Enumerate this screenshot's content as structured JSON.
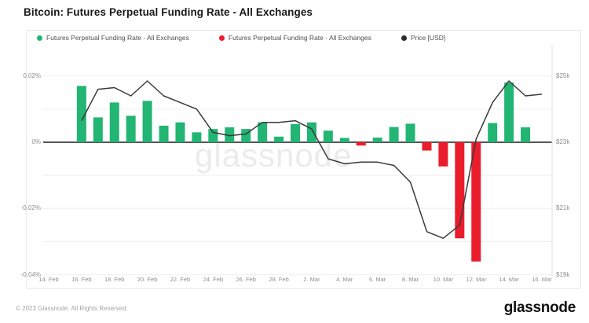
{
  "page": {
    "title": "Bitcoin: Futures Perpetual Funding Rate - All Exchanges",
    "watermark": "glassnode",
    "footer": {
      "copyright": "© 2023 Glassnode. All Rights Reserved.",
      "brand": "glassnode"
    }
  },
  "colors": {
    "positive_bar": "#22b573",
    "negative_bar": "#ea1d2c",
    "price_line": "#3a3a3a",
    "zero_line": "#575757",
    "grid": "#efefef",
    "plot_border": "#e2e2e2"
  },
  "legend": [
    {
      "label": "Futures Perpetual Funding Rate - All Exchanges",
      "color": "#22b573"
    },
    {
      "label": "Futures Perpetual Funding Rate - All Exchanges",
      "color": "#ea1d2c"
    },
    {
      "label": "Price [USD]",
      "color": "#2b2b2b"
    }
  ],
  "chart_data": {
    "type": "combo-bar-line",
    "title": "Bitcoin: Futures Perpetual Funding Rate - All Exchanges",
    "categories": [
      "14. Feb",
      "15. Feb",
      "16. Feb",
      "17. Feb",
      "18. Feb",
      "19. Feb",
      "20. Feb",
      "21. Feb",
      "22. Feb",
      "23. Feb",
      "24. Feb",
      "25. Feb",
      "26. Feb",
      "27. Feb",
      "28. Feb",
      "1. Mar",
      "2. Mar",
      "3. Mar",
      "4. Mar",
      "5. Mar",
      "6. Mar",
      "7. Mar",
      "8. Mar",
      "9. Mar",
      "10. Mar",
      "11. Mar",
      "12. Mar",
      "13. Mar",
      "14. Mar",
      "15. Mar",
      "16. Mar"
    ],
    "xtick_every": 2,
    "series": [
      {
        "name": "Futures Perpetual Funding Rate - All Exchanges",
        "type": "bar",
        "unit": "%",
        "axis": "left",
        "values": [
          null,
          null,
          0.017,
          0.0075,
          0.012,
          0.008,
          0.0125,
          0.005,
          0.006,
          0.003,
          0.004,
          0.0045,
          0.004,
          0.006,
          0.0017,
          0.0055,
          0.006,
          0.0035,
          0.0013,
          -0.001,
          0.0014,
          0.0046,
          0.0056,
          -0.0025,
          -0.0073,
          -0.029,
          -0.036,
          0.0058,
          0.018,
          0.0045,
          null
        ]
      },
      {
        "name": "Price [USD]",
        "type": "line",
        "unit": "USD (thousands)",
        "axis": "right",
        "values": [
          null,
          null,
          23.65,
          24.6,
          24.65,
          24.4,
          24.85,
          24.4,
          24.2,
          24.0,
          23.3,
          23.2,
          23.25,
          23.6,
          23.6,
          23.65,
          23.4,
          22.5,
          22.35,
          22.4,
          22.4,
          22.3,
          21.8,
          20.3,
          20.1,
          20.5,
          23.1,
          24.2,
          24.85,
          24.4,
          24.45
        ]
      }
    ],
    "left_axis": {
      "ticks": [
        {
          "label": "0.02%",
          "value": 0.02
        },
        {
          "label": "0%",
          "value": 0
        },
        {
          "label": "-0.02%",
          "value": -0.02
        },
        {
          "label": "-0.04%",
          "value": -0.04
        }
      ],
      "gridline_values": [
        0.02,
        0.01,
        0,
        -0.01,
        -0.02,
        -0.03,
        -0.04
      ],
      "ylim": [
        -0.045,
        0.025
      ]
    },
    "right_axis": {
      "ticks": [
        {
          "label": "$25k",
          "value": 25
        },
        {
          "label": "$23k",
          "value": 23
        },
        {
          "label": "$21k",
          "value": 21
        },
        {
          "label": "$19k",
          "value": 19
        }
      ],
      "ylim": [
        18.8,
        25.6
      ]
    },
    "grid": true,
    "legend_position": "top"
  }
}
